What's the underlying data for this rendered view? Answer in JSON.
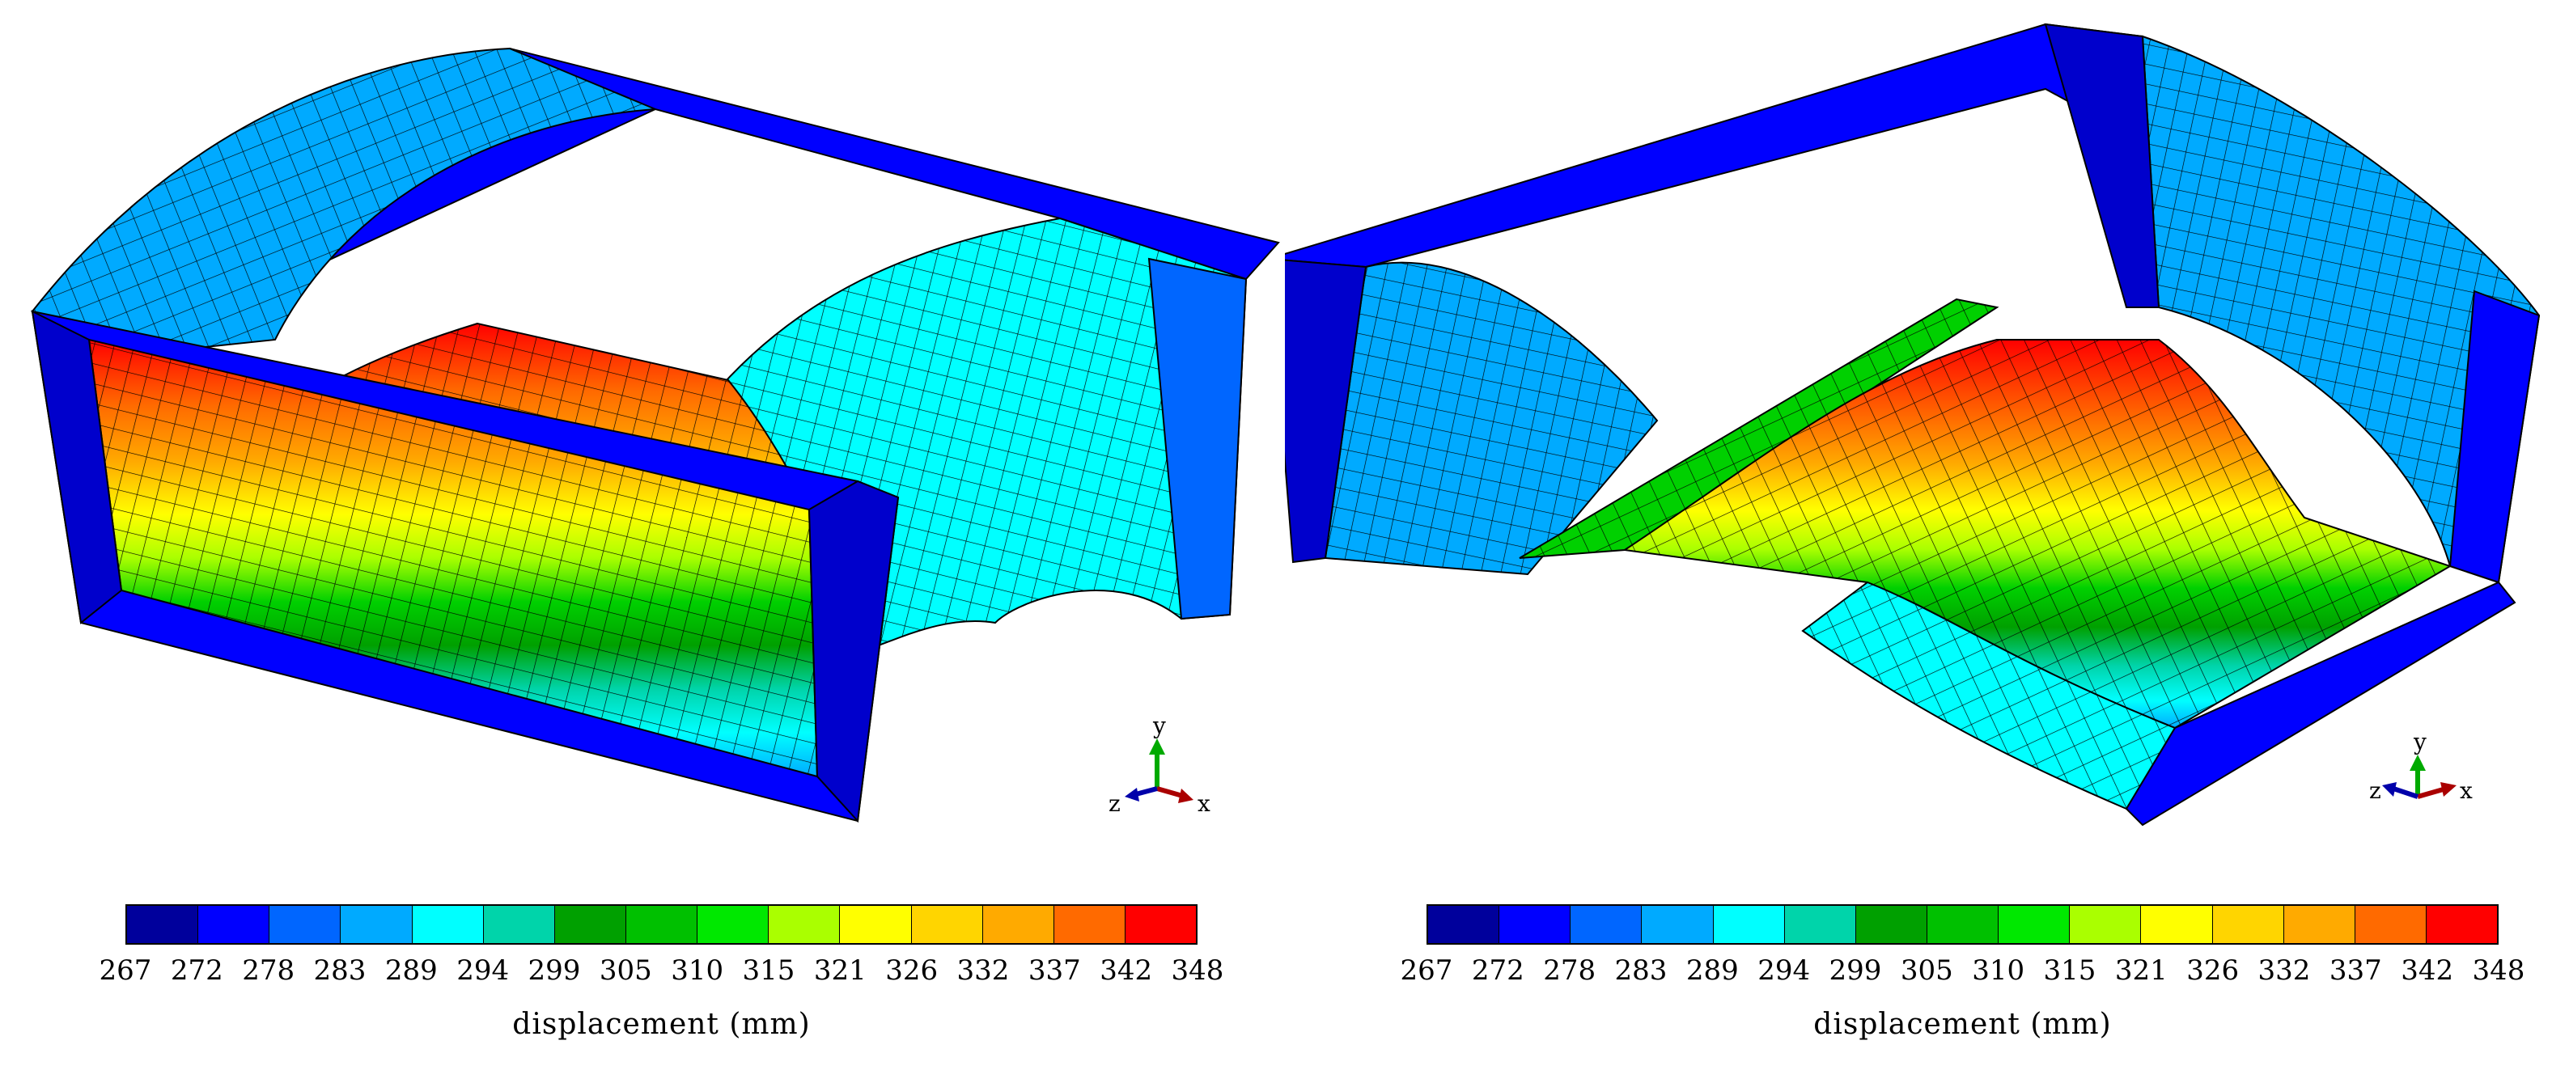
{
  "legend": {
    "title": "displacement (mm)",
    "ticks": [
      "267",
      "272",
      "278",
      "283",
      "289",
      "294",
      "299",
      "305",
      "310",
      "315",
      "321",
      "326",
      "332",
      "337",
      "342",
      "348"
    ],
    "colors": [
      "#00009c",
      "#0000ff",
      "#0066ff",
      "#00aaff",
      "#00ffff",
      "#00d4aa",
      "#00a000",
      "#00c000",
      "#00e800",
      "#aaff00",
      "#ffff00",
      "#ffd500",
      "#ffaa00",
      "#ff6a00",
      "#ff0000"
    ]
  },
  "triad": {
    "x_label": "x",
    "y_label": "y",
    "z_label": "z",
    "x_color": "#aa0000",
    "y_color": "#00aa00",
    "z_color": "#0000aa"
  },
  "panels": [
    {
      "name": "left-view"
    },
    {
      "name": "right-view"
    }
  ]
}
